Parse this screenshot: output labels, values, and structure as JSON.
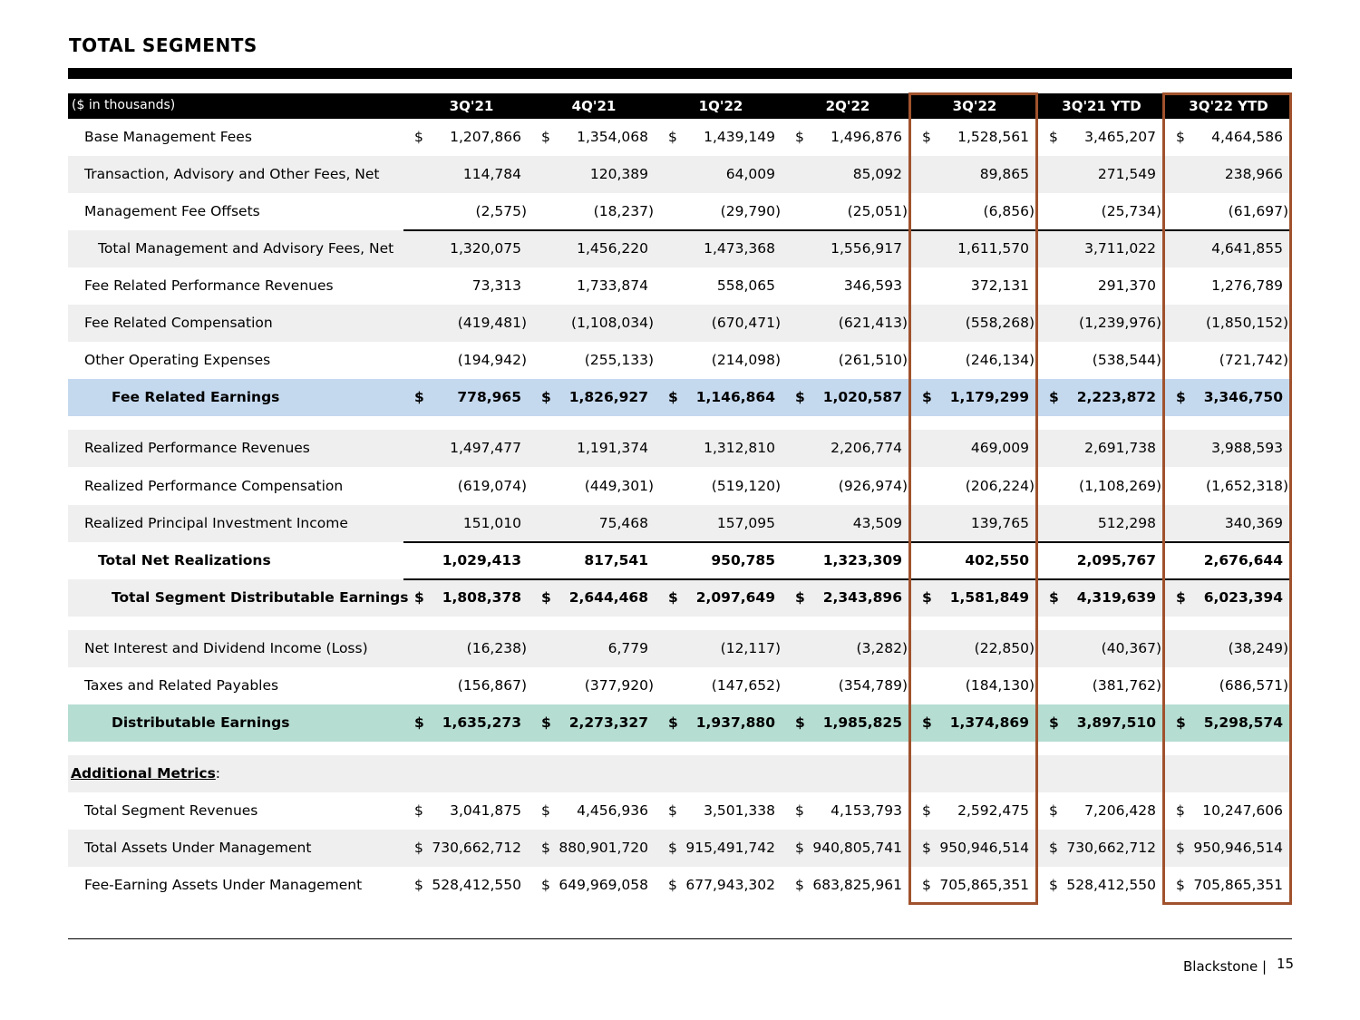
{
  "title": "TOTAL SEGMENTS",
  "header": {
    "units_label": "($ in thousands)",
    "columns": [
      "3Q'21",
      "4Q'21",
      "1Q'22",
      "2Q'22",
      "3Q'22",
      "3Q'21 YTD",
      "3Q'22 YTD"
    ]
  },
  "rows": [
    {
      "label": "Base Management Fees",
      "dollar": true,
      "values": [
        "1,207,866",
        "1,354,068",
        "1,439,149",
        "1,496,876",
        "1,528,561",
        "3,465,207",
        "4,464,586"
      ]
    },
    {
      "label": "Transaction, Advisory and Other Fees, Net",
      "values": [
        "114,784",
        "120,389",
        "64,009",
        "85,092",
        "89,865",
        "271,549",
        "238,966"
      ]
    },
    {
      "label": "Management Fee Offsets",
      "values": [
        "(2,575)",
        "(18,237)",
        "(29,790)",
        "(25,051)",
        "(6,856)",
        "(25,734)",
        "(61,697)"
      ]
    },
    {
      "label": "Total Management and Advisory Fees, Net",
      "values": [
        "1,320,075",
        "1,456,220",
        "1,473,368",
        "1,556,917",
        "1,611,570",
        "3,711,022",
        "4,641,855"
      ]
    },
    {
      "label": "Fee Related Performance Revenues",
      "values": [
        "73,313",
        "1,733,874",
        "558,065",
        "346,593",
        "372,131",
        "291,370",
        "1,276,789"
      ]
    },
    {
      "label": "Fee Related Compensation",
      "values": [
        "(419,481)",
        "(1,108,034)",
        "(670,471)",
        "(621,413)",
        "(558,268)",
        "(1,239,976)",
        "(1,850,152)"
      ]
    },
    {
      "label": "Other Operating Expenses",
      "values": [
        "(194,942)",
        "(255,133)",
        "(214,098)",
        "(261,510)",
        "(246,134)",
        "(538,544)",
        "(721,742)"
      ]
    },
    {
      "label": "Fee Related Earnings",
      "dollar": true,
      "values": [
        "778,965",
        "1,826,927",
        "1,146,864",
        "1,020,587",
        "1,179,299",
        "2,223,872",
        "3,346,750"
      ]
    },
    {
      "label": "Realized Performance Revenues",
      "values": [
        "1,497,477",
        "1,191,374",
        "1,312,810",
        "2,206,774",
        "469,009",
        "2,691,738",
        "3,988,593"
      ]
    },
    {
      "label": "Realized Performance Compensation",
      "values": [
        "(619,074)",
        "(449,301)",
        "(519,120)",
        "(926,974)",
        "(206,224)",
        "(1,108,269)",
        "(1,652,318)"
      ]
    },
    {
      "label": "Realized Principal Investment Income",
      "values": [
        "151,010",
        "75,468",
        "157,095",
        "43,509",
        "139,765",
        "512,298",
        "340,369"
      ]
    },
    {
      "label": "Total Net Realizations",
      "values": [
        "1,029,413",
        "817,541",
        "950,785",
        "1,323,309",
        "402,550",
        "2,095,767",
        "2,676,644"
      ]
    },
    {
      "label": "Total Segment Distributable Earnings",
      "dollar": true,
      "values": [
        "1,808,378",
        "2,644,468",
        "2,097,649",
        "2,343,896",
        "1,581,849",
        "4,319,639",
        "6,023,394"
      ]
    },
    {
      "label": "Net Interest and Dividend Income (Loss)",
      "values": [
        "(16,238)",
        "6,779",
        "(12,117)",
        "(3,282)",
        "(22,850)",
        "(40,367)",
        "(38,249)"
      ]
    },
    {
      "label": "Taxes and Related Payables",
      "values": [
        "(156,867)",
        "(377,920)",
        "(147,652)",
        "(354,789)",
        "(184,130)",
        "(381,762)",
        "(686,571)"
      ]
    },
    {
      "label": "Distributable Earnings",
      "dollar": true,
      "values": [
        "1,635,273",
        "2,273,327",
        "1,937,880",
        "1,985,825",
        "1,374,869",
        "3,897,510",
        "5,298,574"
      ]
    },
    {
      "label": "Additional Metrics",
      "suffix": ":",
      "values": []
    },
    {
      "label": "Total Segment Revenues",
      "dollar": true,
      "values": [
        "3,041,875",
        "4,456,936",
        "3,501,338",
        "4,153,793",
        "2,592,475",
        "7,206,428",
        "10,247,606"
      ]
    },
    {
      "label": "Total Assets Under Management",
      "dollar": true,
      "values": [
        "730,662,712",
        "880,901,720",
        "915,491,742",
        "940,805,741",
        "950,946,514",
        "730,662,712",
        "950,946,514"
      ]
    },
    {
      "label": "Fee-Earning Assets Under Management",
      "dollar": true,
      "values": [
        "528,412,550",
        "649,969,058",
        "677,943,302",
        "683,825,961",
        "705,865,351",
        "528,412,550",
        "705,865,351"
      ]
    }
  ],
  "dollar_sign": "$",
  "footer": {
    "brand": "Blackstone |",
    "page": "15"
  }
}
